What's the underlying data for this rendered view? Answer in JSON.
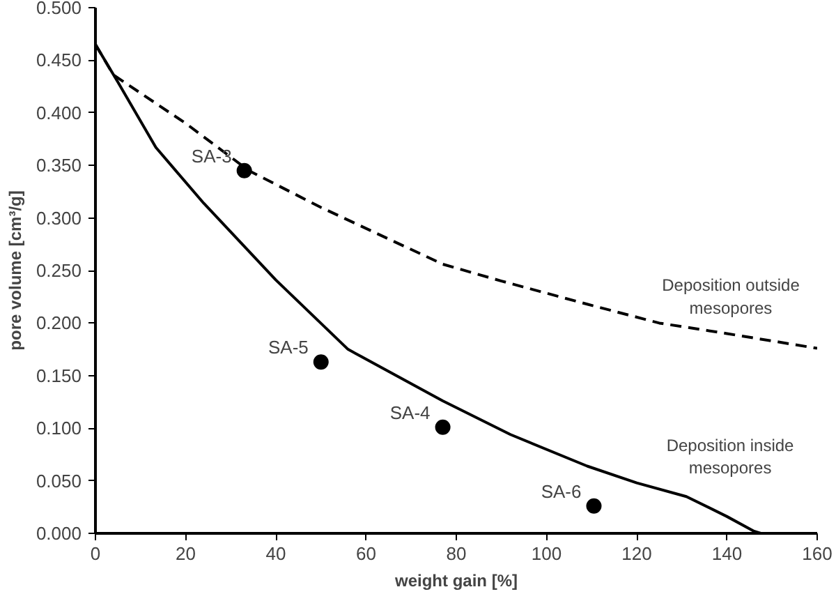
{
  "chart_data": {
    "type": "line",
    "xlabel": "weight gain [%]",
    "ylabel": "pore volume [cm³/g]",
    "xlim": [
      0,
      160
    ],
    "xticks": [
      0,
      20,
      40,
      60,
      80,
      100,
      120,
      140,
      160
    ],
    "ylim": [
      0,
      0.5
    ],
    "yticks": [
      {
        "value": 0,
        "label": "0.000"
      },
      {
        "value": 0.05,
        "label": "0.050"
      },
      {
        "value": 0.1,
        "label": "0.100"
      },
      {
        "value": 0.15,
        "label": "0.150"
      },
      {
        "value": 0.2,
        "label": "0.200"
      },
      {
        "value": 0.25,
        "label": "0.250"
      },
      {
        "value": 0.3,
        "label": "0.300"
      },
      {
        "value": 0.35,
        "label": "0.350"
      },
      {
        "value": 0.4,
        "label": "0.400"
      },
      {
        "value": 0.45,
        "label": "0.450"
      },
      {
        "value": 0.5,
        "label": "0.500"
      }
    ],
    "grid": false,
    "series": [
      {
        "name": "Deposition outside mesopores",
        "line_style": "dashed",
        "color": "#000000",
        "x": [
          0,
          4,
          20,
          34,
          50,
          66,
          77,
          90,
          109,
          125,
          140,
          160
        ],
        "values": [
          0.465,
          0.436,
          0.39,
          0.345,
          0.31,
          0.278,
          0.256,
          0.24,
          0.218,
          0.2,
          0.19,
          0.176
        ]
      },
      {
        "name": "Deposition inside mesopores",
        "line_style": "solid",
        "color": "#000000",
        "x": [
          0,
          5,
          13.4,
          24,
          40,
          56,
          77,
          92,
          109,
          120,
          131,
          140,
          146,
          147.5
        ],
        "values": [
          0.465,
          0.429,
          0.367,
          0.314,
          0.241,
          0.175,
          0.126,
          0.094,
          0.064,
          0.048,
          0.035,
          0.016,
          0.002,
          0
        ]
      },
      {
        "type": "scatter",
        "marker": "circle",
        "color": "#000000",
        "x": [
          33,
          50,
          77,
          110.5
        ],
        "values": [
          0.345,
          0.163,
          0.101,
          0.026
        ]
      }
    ],
    "annotations": [
      {
        "text": "SA-3",
        "x": 33,
        "y": 0.345
      },
      {
        "text": "SA-5",
        "x": 50,
        "y": 0.163
      },
      {
        "text": "SA-4",
        "x": 77,
        "y": 0.101
      },
      {
        "text": "SA-6",
        "x": 110.5,
        "y": 0.026
      }
    ]
  }
}
